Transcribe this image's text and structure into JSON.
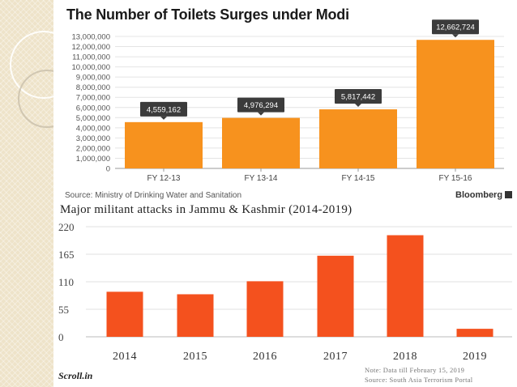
{
  "chart_data": [
    {
      "type": "bar",
      "title": "The Number of Toilets Surges under Modi",
      "categories": [
        "FY 12-13",
        "FY 13-14",
        "FY 14-15",
        "FY 15-16"
      ],
      "values": [
        4559162,
        4976294,
        5817442,
        12662724
      ],
      "value_labels": [
        "4,559,162",
        "4,976,294",
        "5,817,442",
        "12,662,724"
      ],
      "ylim": [
        0,
        13000000
      ],
      "yticks": [
        0,
        1000000,
        2000000,
        3000000,
        4000000,
        5000000,
        6000000,
        7000000,
        8000000,
        9000000,
        10000000,
        11000000,
        12000000,
        13000000
      ],
      "ytick_labels": [
        "0",
        "1,000,000",
        "2,000,000",
        "3,000,000",
        "4,000,000",
        "5,000,000",
        "6,000,000",
        "7,000,000",
        "8,000,000",
        "9,000,000",
        "10,000,000",
        "11,000,000",
        "12,000,000",
        "13,000,000"
      ],
      "grid": true,
      "source": "Source: Ministry of Drinking Water and Sanitation",
      "brand": "Bloomberg",
      "bar_color": "#f7921e",
      "label_color": "#3b3b3b"
    },
    {
      "type": "bar",
      "title": "Major militant attacks in Jammu & Kashmir (2014-2019)",
      "categories": [
        "2014",
        "2015",
        "2016",
        "2017",
        "2018",
        "2019"
      ],
      "values": [
        90,
        85,
        111,
        162,
        203,
        16
      ],
      "ylim": [
        0,
        220
      ],
      "yticks": [
        0,
        55,
        110,
        165,
        220
      ],
      "ytick_labels": [
        "0",
        "55",
        "110",
        "165",
        "220"
      ],
      "grid": true,
      "note": "Note: Data till February 15, 2019",
      "source": "Source: South Asia Terrorism Portal",
      "logo": "Scroll.in",
      "bar_color": "#f4511e"
    }
  ]
}
